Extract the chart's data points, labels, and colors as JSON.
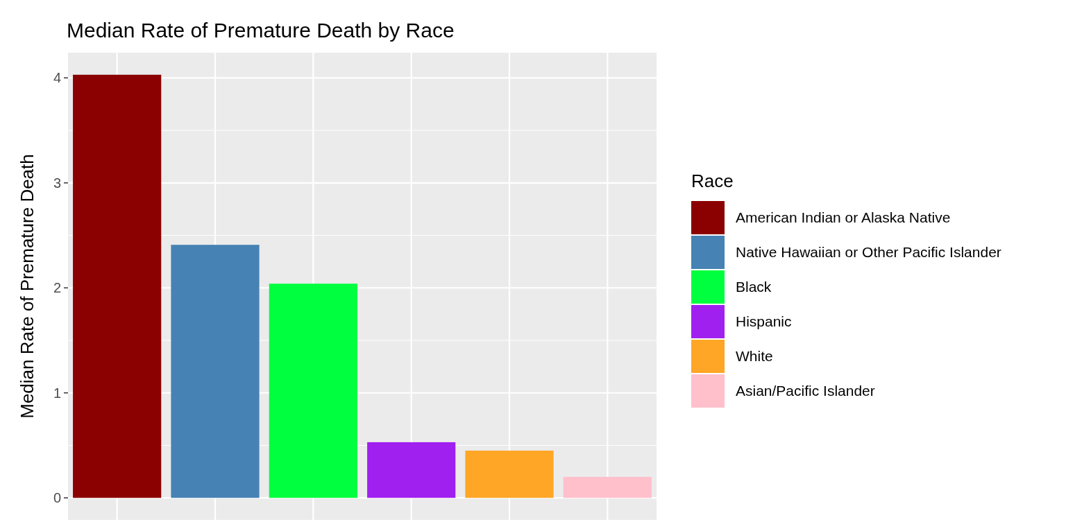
{
  "chart_data": {
    "type": "bar",
    "title": "Median Rate of Premature Death by Race",
    "ylabel": "Median Rate of Premature Death",
    "legend_title": "Race",
    "categories": [
      null,
      null,
      null,
      null,
      null,
      null
    ],
    "stacked": true,
    "series": [
      {
        "name": "American Indian or Alaska Native",
        "color": "#8b0000",
        "values": [
          4.03,
          null,
          null,
          null,
          null,
          null
        ]
      },
      {
        "name": "Native Hawaiian or Other Pacific Islander",
        "color": "#4682b4",
        "values": [
          null,
          2.41,
          null,
          null,
          null,
          null
        ]
      },
      {
        "name": "Black",
        "color": "#00ff3f",
        "values": [
          null,
          null,
          2.04,
          null,
          null,
          null
        ]
      },
      {
        "name": "Hispanic",
        "color": "#a020f0",
        "values": [
          null,
          null,
          null,
          0.53,
          null,
          null
        ]
      },
      {
        "name": "White",
        "color": "#ffa626",
        "values": [
          null,
          null,
          null,
          null,
          0.45,
          null
        ]
      },
      {
        "name": "Asian/Pacific Islander",
        "color": "#ffc0cb",
        "values": [
          null,
          null,
          null,
          null,
          null,
          0.2
        ]
      }
    ],
    "ylim": [
      -0.21,
      4.24
    ],
    "yticks": [
      0,
      1,
      2,
      3,
      4
    ],
    "grid": true,
    "legend": "right"
  }
}
